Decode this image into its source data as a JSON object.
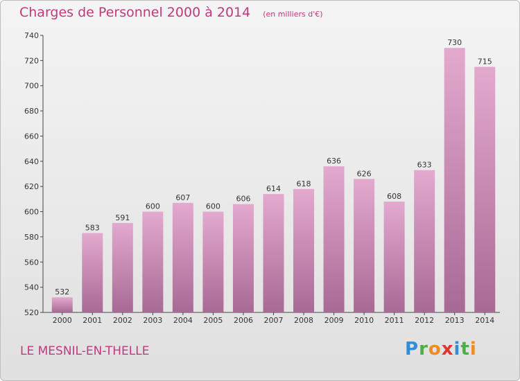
{
  "header": {
    "title": "Charges de Personnel 2000 à 2014",
    "subtitle": "(en milliers d'€)"
  },
  "footer": {
    "place": "LE MESNIL-EN-THELLE",
    "logo_letters": [
      "P",
      "r",
      "o",
      "x",
      "i",
      "t",
      "i"
    ]
  },
  "colors": {
    "bar_top": "#e4a9cf",
    "bar_bottom": "#a76a95",
    "accent": "#c0397f"
  },
  "chart_data": {
    "type": "bar",
    "title": "Charges de Personnel 2000 à 2014",
    "subtitle": "(en milliers d'€)",
    "xlabel": "",
    "ylabel": "",
    "categories": [
      "2000",
      "2001",
      "2002",
      "2003",
      "2004",
      "2005",
      "2006",
      "2007",
      "2008",
      "2009",
      "2010",
      "2011",
      "2012",
      "2013",
      "2014"
    ],
    "values": [
      532,
      583,
      591,
      600,
      607,
      600,
      606,
      614,
      618,
      636,
      626,
      608,
      633,
      730,
      715
    ],
    "ylim": [
      520,
      740
    ],
    "yticks": [
      520,
      540,
      560,
      580,
      600,
      620,
      640,
      660,
      680,
      700,
      720,
      740
    ],
    "grid": false,
    "legend": "none"
  }
}
